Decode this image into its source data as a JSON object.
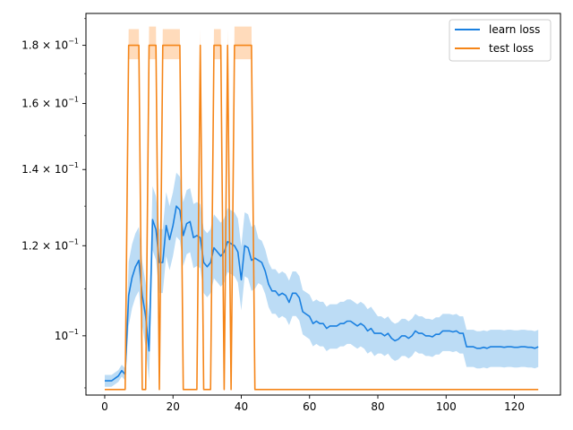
{
  "chart_data": {
    "type": "line",
    "title": "",
    "xlabel": "",
    "ylabel": "",
    "xlim": [
      -5.5,
      133.5
    ],
    "ylim": [
      0.0887,
      0.192
    ],
    "y_scale": "log",
    "grid": false,
    "legend_placement": "top-right",
    "x_ticks": [
      0,
      20,
      40,
      60,
      80,
      100,
      120
    ],
    "x_tick_labels": [
      "0",
      "20",
      "40",
      "60",
      "80",
      "100",
      "120"
    ],
    "y_ticks": [
      {
        "value": 0.1,
        "mantissa": "",
        "exponent": "−1"
      },
      {
        "value": 0.12,
        "mantissa": "1.2",
        "exponent": "−1"
      },
      {
        "value": 0.14,
        "mantissa": "1.4",
        "exponent": "−1"
      },
      {
        "value": 0.16,
        "mantissa": "1.6",
        "exponent": "−1"
      },
      {
        "value": 0.18,
        "mantissa": "1.8",
        "exponent": "−1"
      }
    ],
    "series": [
      {
        "name": "learn loss",
        "color": "#1f77b4",
        "band_color": "#8fc4ef",
        "line_color": "#1a80e0",
        "points": [
          [
            0,
            0.0913
          ],
          [
            2,
            0.0913
          ],
          [
            4,
            0.0922
          ],
          [
            5,
            0.0932
          ],
          [
            6,
            0.0925
          ],
          [
            7,
            0.1085
          ],
          [
            8,
            0.1125
          ],
          [
            9,
            0.115
          ],
          [
            10,
            0.1165
          ],
          [
            11,
            0.1085
          ],
          [
            12,
            0.104
          ],
          [
            13,
            0.097
          ],
          [
            14,
            0.1265
          ],
          [
            15,
            0.124
          ],
          [
            16,
            0.116
          ],
          [
            17,
            0.116
          ],
          [
            18,
            0.125
          ],
          [
            19,
            0.1215
          ],
          [
            20,
            0.125
          ],
          [
            21,
            0.13
          ],
          [
            22,
            0.129
          ],
          [
            23,
            0.1225
          ],
          [
            24,
            0.1255
          ],
          [
            25,
            0.126
          ],
          [
            26,
            0.122
          ],
          [
            27,
            0.1225
          ],
          [
            28,
            0.122
          ],
          [
            29,
            0.116
          ],
          [
            30,
            0.115
          ],
          [
            31,
            0.116
          ],
          [
            32,
            0.1195
          ],
          [
            33,
            0.1185
          ],
          [
            34,
            0.1175
          ],
          [
            35,
            0.1185
          ],
          [
            36,
            0.121
          ],
          [
            37,
            0.1205
          ],
          [
            38,
            0.12
          ],
          [
            39,
            0.1185
          ],
          [
            40,
            0.112
          ],
          [
            41,
            0.12
          ],
          [
            42,
            0.1195
          ],
          [
            43,
            0.1165
          ],
          [
            44,
            0.117
          ],
          [
            45,
            0.1165
          ],
          [
            46,
            0.116
          ],
          [
            47,
            0.114
          ],
          [
            48,
            0.111
          ],
          [
            49,
            0.1095
          ],
          [
            50,
            0.1095
          ],
          [
            51,
            0.1085
          ],
          [
            52,
            0.109
          ],
          [
            53,
            0.1085
          ],
          [
            54,
            0.107
          ],
          [
            55,
            0.109
          ],
          [
            56,
            0.109
          ],
          [
            57,
            0.108
          ],
          [
            58,
            0.105
          ],
          [
            59,
            0.1045
          ],
          [
            60,
            0.104
          ],
          [
            61,
            0.1025
          ],
          [
            62,
            0.103
          ],
          [
            63,
            0.1025
          ],
          [
            64,
            0.1025
          ],
          [
            65,
            0.1015
          ],
          [
            66,
            0.102
          ],
          [
            67,
            0.102
          ],
          [
            68,
            0.102
          ],
          [
            69,
            0.1025
          ],
          [
            70,
            0.1025
          ],
          [
            71,
            0.103
          ],
          [
            72,
            0.103
          ],
          [
            73,
            0.1025
          ],
          [
            74,
            0.102
          ],
          [
            75,
            0.1025
          ],
          [
            76,
            0.102
          ],
          [
            77,
            0.101
          ],
          [
            78,
            0.1015
          ],
          [
            79,
            0.1005
          ],
          [
            80,
            0.1005
          ],
          [
            81,
            0.1005
          ],
          [
            82,
            0.1
          ],
          [
            83,
            0.1005
          ],
          [
            84,
            0.0995
          ],
          [
            85,
            0.099
          ],
          [
            86,
            0.0993
          ],
          [
            87,
            0.1
          ],
          [
            88,
            0.1
          ],
          [
            89,
            0.0995
          ],
          [
            90,
            0.1
          ],
          [
            91,
            0.101
          ],
          [
            92,
            0.1005
          ],
          [
            93,
            0.1005
          ],
          [
            94,
            0.1
          ],
          [
            95,
            0.1
          ],
          [
            96,
            0.0998
          ],
          [
            97,
            0.1003
          ],
          [
            98,
            0.1003
          ],
          [
            99,
            0.101
          ],
          [
            100,
            0.101
          ],
          [
            101,
            0.101
          ],
          [
            102,
            0.1008
          ],
          [
            103,
            0.101
          ],
          [
            104,
            0.1005
          ],
          [
            105,
            0.1005
          ],
          [
            106,
            0.0978
          ],
          [
            107,
            0.0978
          ],
          [
            108,
            0.0978
          ],
          [
            109,
            0.0975
          ],
          [
            110,
            0.0975
          ],
          [
            111,
            0.0977
          ],
          [
            112,
            0.0975
          ],
          [
            113,
            0.0978
          ],
          [
            114,
            0.0978
          ],
          [
            115,
            0.0978
          ],
          [
            116,
            0.0978
          ],
          [
            117,
            0.0977
          ],
          [
            118,
            0.0978
          ],
          [
            119,
            0.0978
          ],
          [
            120,
            0.0977
          ],
          [
            121,
            0.0977
          ],
          [
            122,
            0.0978
          ],
          [
            123,
            0.0978
          ],
          [
            124,
            0.0977
          ],
          [
            125,
            0.0977
          ],
          [
            126,
            0.0975
          ],
          [
            127,
            0.0978
          ]
        ]
      },
      {
        "name": "test loss",
        "color": "#ff7f0e",
        "band_color": "#ffd2aa",
        "line_color": "#f58518",
        "points": [
          [
            0,
            0.0897
          ],
          [
            6,
            0.0897
          ],
          [
            7,
            0.18
          ],
          [
            10,
            0.18
          ],
          [
            11,
            0.0897
          ],
          [
            12,
            0.0897
          ],
          [
            13,
            0.18
          ],
          [
            15,
            0.18
          ],
          [
            16,
            0.0897
          ],
          [
            17,
            0.18
          ],
          [
            22,
            0.18
          ],
          [
            23,
            0.0897
          ],
          [
            27,
            0.0897
          ],
          [
            28,
            0.18
          ],
          [
            29,
            0.0897
          ],
          [
            31,
            0.0897
          ],
          [
            32,
            0.18
          ],
          [
            34,
            0.18
          ],
          [
            35,
            0.0897
          ],
          [
            36,
            0.18
          ],
          [
            37,
            0.0897
          ],
          [
            38,
            0.18
          ],
          [
            43,
            0.18
          ],
          [
            44,
            0.0897
          ],
          [
            127,
            0.0897
          ]
        ],
        "band": [
          [
            6,
            0.0897,
            0.0897
          ],
          [
            7,
            0.175,
            0.186
          ],
          [
            10,
            0.175,
            0.186
          ],
          [
            11,
            0.0897,
            0.0897
          ],
          [
            12,
            0.0897,
            0.0897
          ],
          [
            13,
            0.175,
            0.187
          ],
          [
            15,
            0.175,
            0.187
          ],
          [
            16,
            0.0897,
            0.0897
          ],
          [
            17,
            0.175,
            0.186
          ],
          [
            22,
            0.175,
            0.186
          ],
          [
            23,
            0.0897,
            0.0897
          ],
          [
            27,
            0.0897,
            0.0897
          ],
          [
            28,
            0.175,
            0.186
          ],
          [
            29,
            0.0897,
            0.0897
          ],
          [
            31,
            0.0897,
            0.0897
          ],
          [
            32,
            0.175,
            0.186
          ],
          [
            34,
            0.175,
            0.186
          ],
          [
            35,
            0.0897,
            0.0897
          ],
          [
            36,
            0.175,
            0.186
          ],
          [
            37,
            0.0897,
            0.0897
          ],
          [
            38,
            0.175,
            0.187
          ],
          [
            43,
            0.175,
            0.187
          ],
          [
            44,
            0.0897,
            0.0897
          ]
        ]
      }
    ]
  },
  "legend": {
    "items": [
      {
        "label": "learn loss",
        "color": "#1a80e0"
      },
      {
        "label": "test loss",
        "color": "#f58518"
      }
    ]
  }
}
